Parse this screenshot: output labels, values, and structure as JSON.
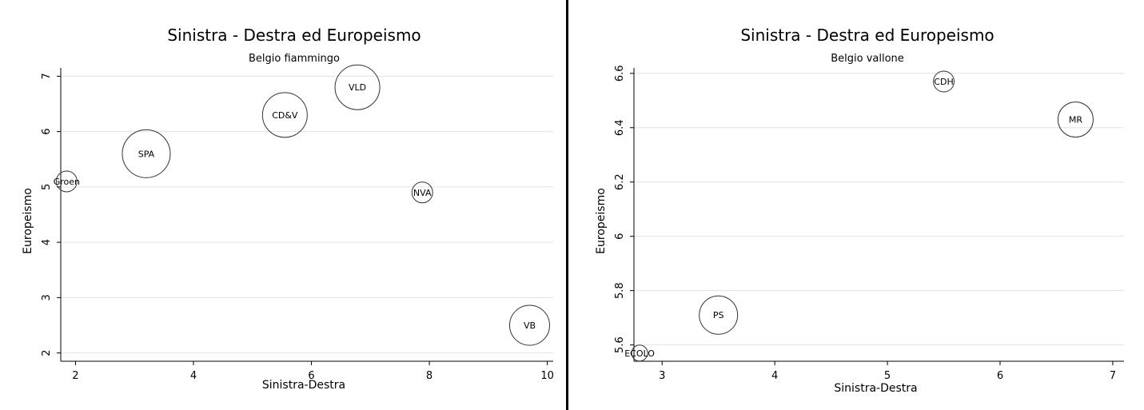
{
  "chart_data": [
    {
      "type": "scatter",
      "title": "Sinistra - Destra ed Europeismo",
      "subtitle": "Belgio fiammingo",
      "xlabel": "Sinistra-Destra",
      "ylabel": "Europeismo",
      "xlim": [
        1.75,
        10.1
      ],
      "ylim": [
        1.85,
        7.15
      ],
      "xticks": [
        2,
        4,
        6,
        8,
        10
      ],
      "yticks": [
        2,
        3,
        4,
        5,
        6,
        7
      ],
      "grid": true,
      "points": [
        {
          "label": "Groen",
          "x": 1.85,
          "y": 5.1,
          "size": 13
        },
        {
          "label": "SPA",
          "x": 3.2,
          "y": 5.6,
          "size": 30
        },
        {
          "label": "CD&V",
          "x": 5.55,
          "y": 6.3,
          "size": 28
        },
        {
          "label": "VLD",
          "x": 6.78,
          "y": 6.8,
          "size": 28
        },
        {
          "label": "NVA",
          "x": 7.88,
          "y": 4.9,
          "size": 13
        },
        {
          "label": "VB",
          "x": 9.7,
          "y": 2.5,
          "size": 25
        }
      ]
    },
    {
      "type": "scatter",
      "title": "Sinistra - Destra ed Europeismo",
      "subtitle": "Belgio vallone",
      "xlabel": "Sinistra-Destra",
      "ylabel": "Europeismo",
      "xlim": [
        2.75,
        7.1
      ],
      "ylim": [
        5.54,
        6.62
      ],
      "xticks": [
        3,
        4,
        5,
        6,
        7
      ],
      "yticks": [
        5.6,
        5.8,
        6,
        6.2,
        6.4,
        6.6
      ],
      "ytick_labels": [
        "5.6",
        "5.8",
        "6",
        "6.2",
        "6.4",
        "6.6"
      ],
      "grid": true,
      "points": [
        {
          "label": "ECOLO",
          "x": 2.8,
          "y": 5.57,
          "size": 10
        },
        {
          "label": "PS",
          "x": 3.5,
          "y": 5.71,
          "size": 24
        },
        {
          "label": "CDH",
          "x": 5.5,
          "y": 6.57,
          "size": 13
        },
        {
          "label": "MR",
          "x": 6.67,
          "y": 6.43,
          "size": 22
        }
      ]
    }
  ]
}
